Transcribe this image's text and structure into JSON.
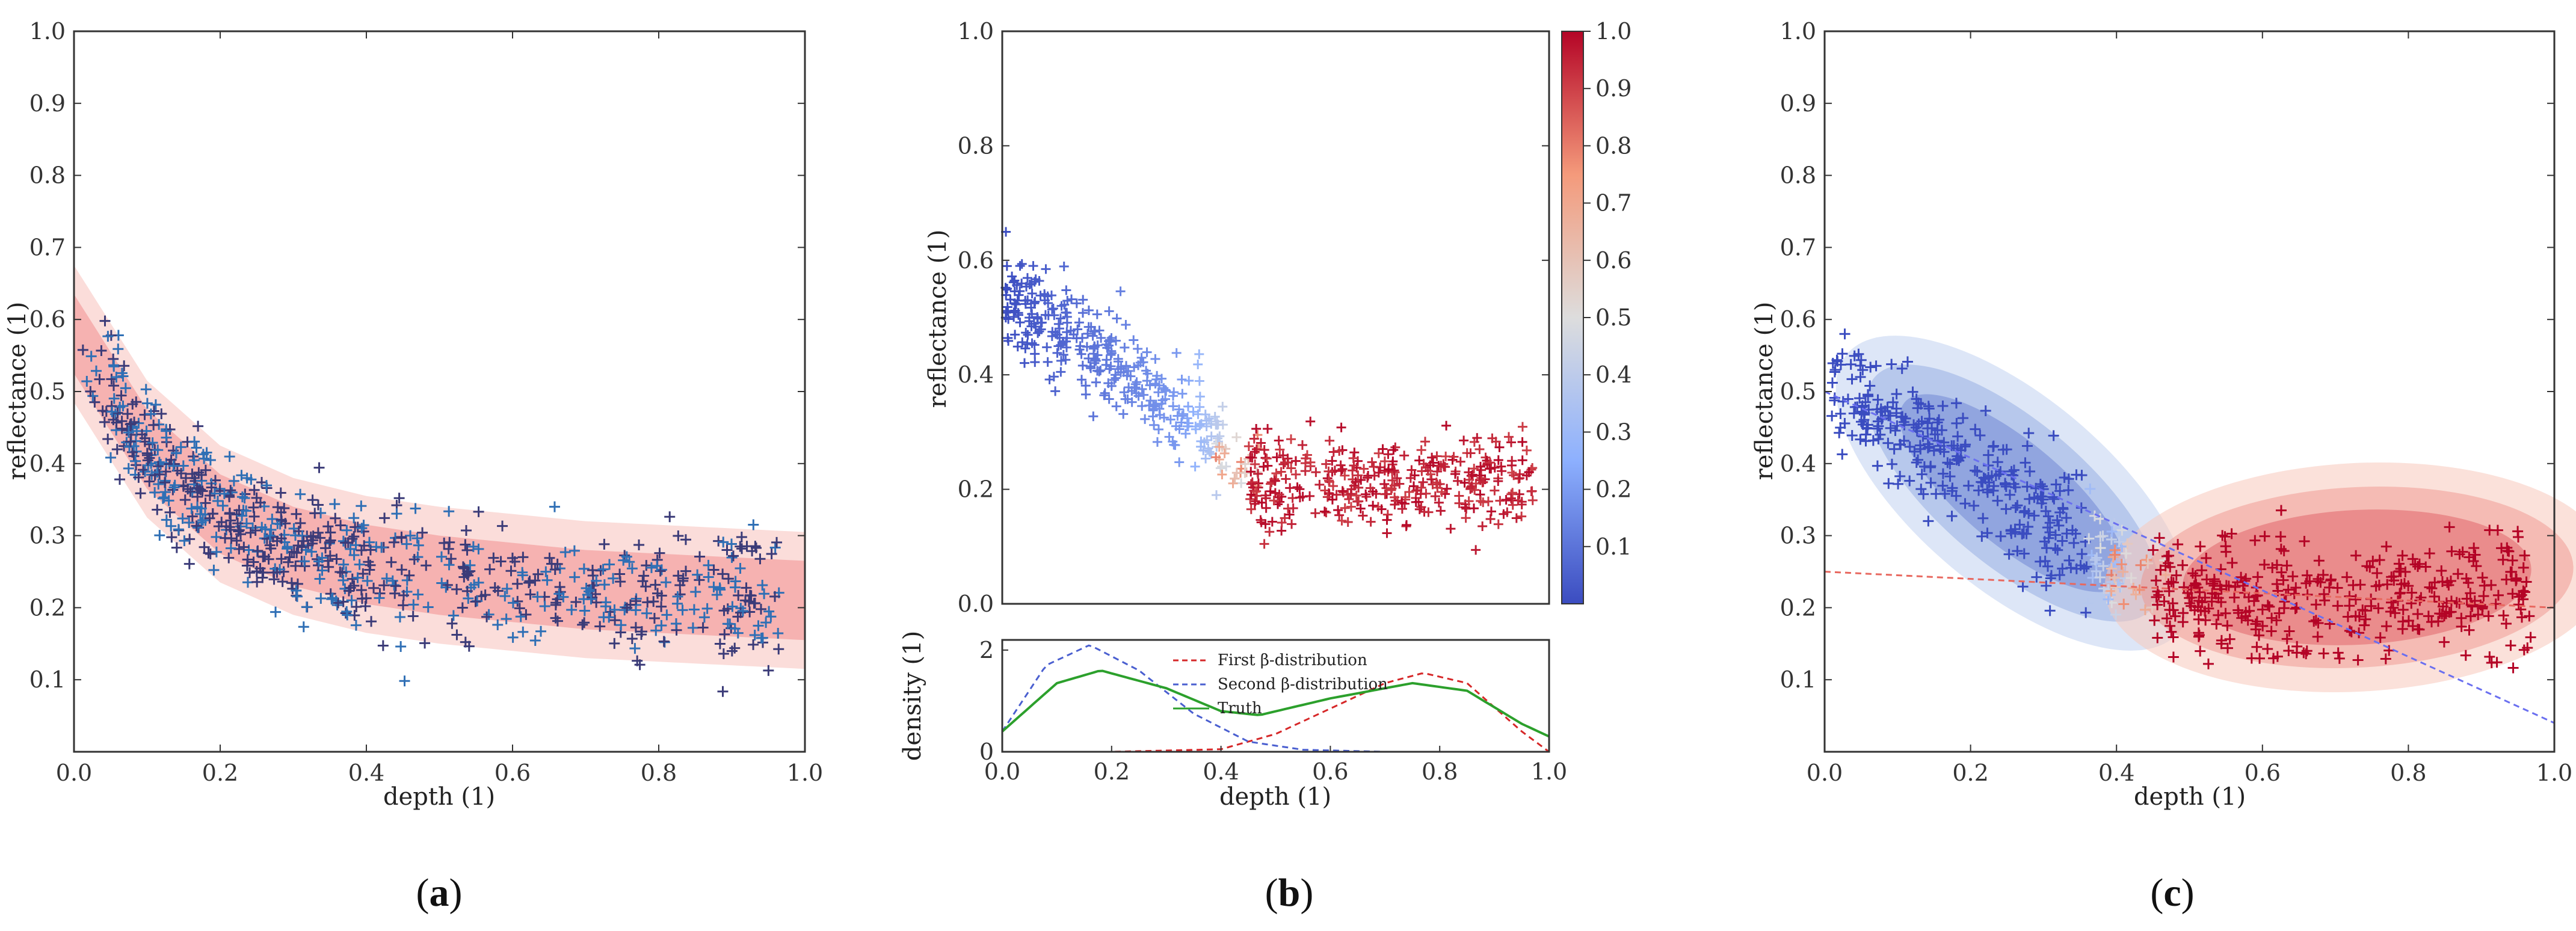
{
  "charts": {
    "a": {
      "caption_open": "(",
      "caption_letter": "a",
      "caption_close": ")",
      "xlabel": "depth (1)",
      "ylabel": "reflectance (1)",
      "xticks": [
        "0.0",
        "0.2",
        "0.4",
        "0.6",
        "0.8",
        "1.0"
      ],
      "yticks": [
        "0.1",
        "0.2",
        "0.3",
        "0.4",
        "0.5",
        "0.6",
        "0.7",
        "0.8",
        "0.9",
        "1.0"
      ]
    },
    "b": {
      "caption_open": "(",
      "caption_letter": "b",
      "caption_close": ")",
      "xlabel": "depth (1)",
      "ylabel": "reflectance (1)",
      "density_ylabel": "density (1)",
      "xticks": [
        "0.0",
        "0.2",
        "0.4",
        "0.6",
        "0.8",
        "1.0"
      ],
      "yticks": [
        "0.0",
        "0.2",
        "0.4",
        "0.6",
        "0.8",
        "1.0"
      ],
      "density_yticks": [
        "0",
        "2"
      ],
      "colorbar_ticks": [
        "0.1",
        "0.2",
        "0.3",
        "0.4",
        "0.5",
        "0.6",
        "0.7",
        "0.8",
        "0.9",
        "1.0"
      ],
      "legend": [
        "First β-distribution",
        "Second β-distribution",
        "Truth"
      ]
    },
    "c": {
      "caption_open": "(",
      "caption_letter": "c",
      "caption_close": ")",
      "xlabel": "depth (1)",
      "ylabel": "reflectance (1)",
      "xticks": [
        "0.0",
        "0.2",
        "0.4",
        "0.6",
        "0.8",
        "1.0"
      ],
      "yticks": [
        "0.1",
        "0.2",
        "0.3",
        "0.4",
        "0.5",
        "0.6",
        "0.7",
        "0.8",
        "0.9",
        "1.0"
      ]
    }
  },
  "colors": {
    "blue_points": "#2f6fb5",
    "dark_points": "#3b3b78",
    "cluster_blue": "#3a4cc0",
    "cluster_red": "#b40426",
    "band_red": "#f4a0a0",
    "truth_green": "#2ca02c",
    "first_red": "#d62728",
    "second_blue": "#4a5fd0"
  },
  "chart_data": [
    {
      "type": "scatter",
      "panel": "a",
      "xlim": [
        0,
        1
      ],
      "ylim": [
        0,
        1
      ],
      "trend": {
        "x": [
          0.0,
          0.1,
          0.2,
          0.3,
          0.4,
          0.5,
          0.6,
          0.7,
          0.8,
          0.9,
          1.0
        ],
        "y": [
          0.58,
          0.42,
          0.33,
          0.285,
          0.26,
          0.245,
          0.235,
          0.225,
          0.22,
          0.215,
          0.21
        ]
      },
      "band_inner_halfwidth": 0.055,
      "band_outer_halfwidth": 0.095,
      "points": "approximately 800 '+' markers scattered around the trend curve, x from 0.0 to 0.97"
    },
    {
      "type": "scatter",
      "panel": "b",
      "xlim": [
        0,
        1
      ],
      "ylim": [
        0,
        1
      ],
      "clusters": [
        {
          "name": "blue",
          "x_range": [
            0.0,
            0.42
          ],
          "center": [
            0.18,
            0.36
          ]
        },
        {
          "name": "red",
          "x_range": [
            0.45,
            0.97
          ],
          "center": [
            0.7,
            0.21
          ]
        }
      ],
      "colorbar": {
        "min": 0.0,
        "max": 1.0,
        "cmap": "coolwarm"
      },
      "density": {
        "ylim": [
          0,
          2.2
        ],
        "series": [
          {
            "name": "First β-distribution",
            "style": "dashed",
            "x": [
              0.0,
              0.2,
              0.4,
              0.5,
              0.6,
              0.7,
              0.77,
              0.85,
              0.95,
              1.0
            ],
            "y": [
              0.0,
              0.0,
              0.05,
              0.35,
              0.85,
              1.35,
              1.55,
              1.35,
              0.4,
              0.0
            ]
          },
          {
            "name": "Second β-distribution",
            "style": "dashed",
            "x": [
              0.0,
              0.08,
              0.16,
              0.25,
              0.35,
              0.45,
              0.55,
              0.7,
              1.0
            ],
            "y": [
              0.4,
              1.7,
              2.1,
              1.6,
              0.75,
              0.2,
              0.04,
              0.0,
              0.0
            ]
          },
          {
            "name": "Truth",
            "style": "solid",
            "x": [
              0.0,
              0.1,
              0.18,
              0.3,
              0.4,
              0.47,
              0.6,
              0.75,
              0.85,
              0.95,
              1.0
            ],
            "y": [
              0.4,
              1.35,
              1.6,
              1.25,
              0.8,
              0.72,
              1.05,
              1.35,
              1.2,
              0.55,
              0.3
            ]
          }
        ]
      }
    },
    {
      "type": "scatter",
      "panel": "c",
      "xlim": [
        0,
        1
      ],
      "ylim": [
        0,
        1
      ],
      "clusters": [
        {
          "name": "blue",
          "center": [
            0.18,
            0.37
          ],
          "ellipse": "tilted along negative slope"
        },
        {
          "name": "red",
          "center": [
            0.72,
            0.22
          ],
          "ellipse": "wide, nearly horizontal"
        }
      ],
      "lines": [
        {
          "name": "red dashed",
          "x": [
            0,
            1
          ],
          "y": [
            0.25,
            0.2
          ]
        },
        {
          "name": "blue dashed",
          "x": [
            0,
            1
          ],
          "y": [
            0.5,
            0.04
          ]
        }
      ]
    }
  ]
}
